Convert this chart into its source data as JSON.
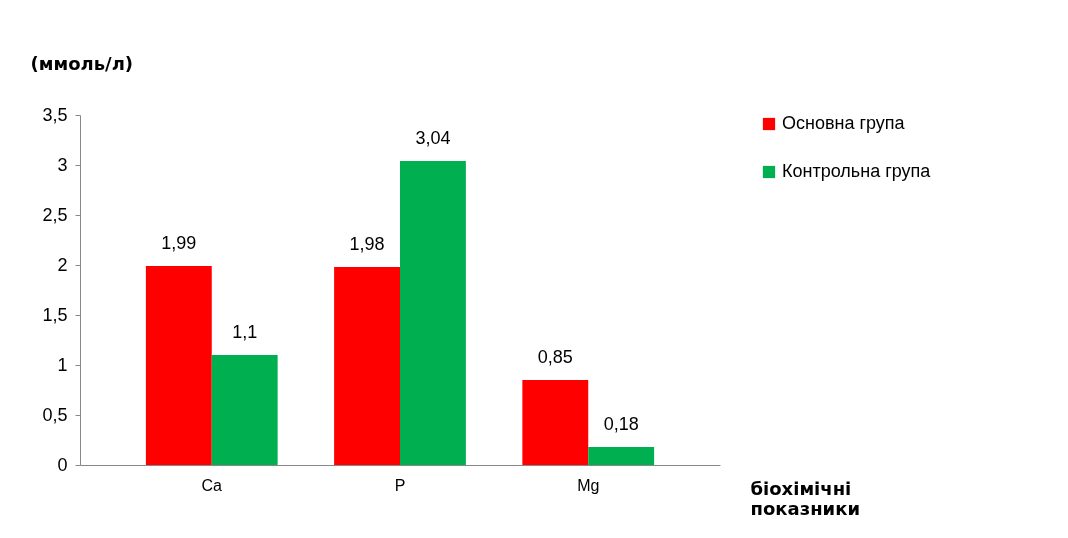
{
  "chart_data": {
    "type": "bar",
    "ylabel": "(ммоль/л)",
    "xlabel": "біохімічні показники",
    "categories": [
      "Ca",
      "P",
      "Mg"
    ],
    "series": [
      {
        "name": "Основна група",
        "color": "#ff0000",
        "values": [
          1.99,
          1.98,
          0.85
        ],
        "value_labels": [
          "1,99",
          "1,98",
          "0,85"
        ]
      },
      {
        "name": "Контрольна група",
        "color": "#00b050",
        "values": [
          1.1,
          3.04,
          0.18
        ],
        "value_labels": [
          "1,1",
          "3,04",
          "0,18"
        ]
      }
    ],
    "ylim": [
      0,
      3.5
    ],
    "yticks": [
      {
        "value": 0,
        "label": "0"
      },
      {
        "value": 0.5,
        "label": "0,5"
      },
      {
        "value": 1,
        "label": "1"
      },
      {
        "value": 1.5,
        "label": "1,5"
      },
      {
        "value": 2,
        "label": "2"
      },
      {
        "value": 2.5,
        "label": "2,5"
      },
      {
        "value": 3,
        "label": "3"
      },
      {
        "value": 3.5,
        "label": "3,5"
      }
    ],
    "grid": false,
    "legend": "right"
  }
}
